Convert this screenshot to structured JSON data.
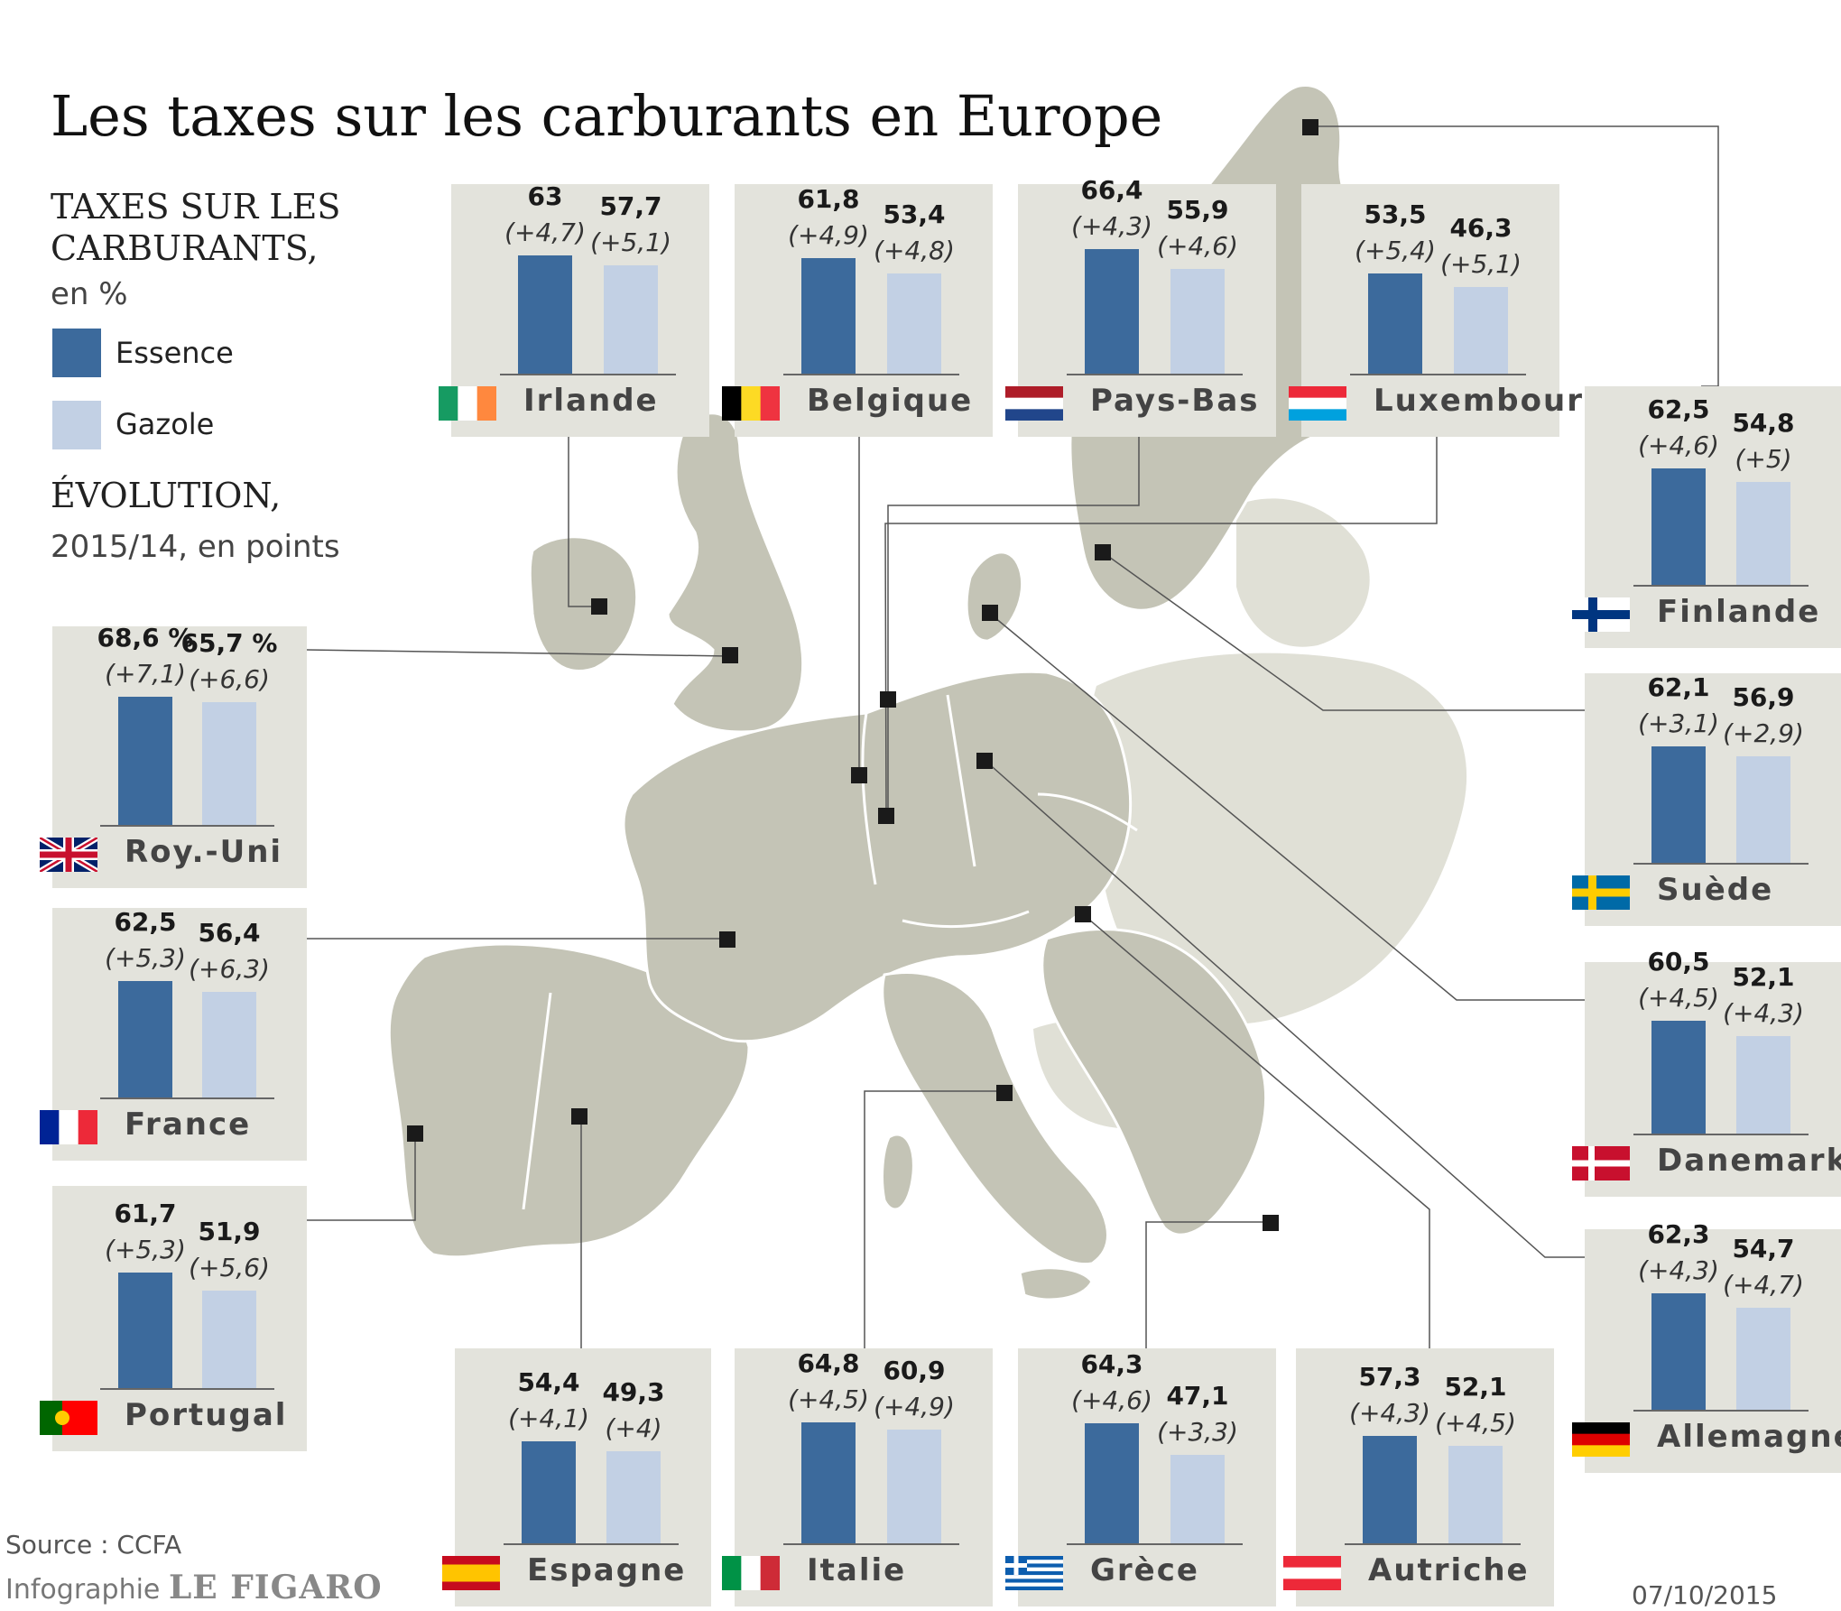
{
  "title": "Les taxes sur les carburants en Europe",
  "legend": {
    "heading_line1": "TAXES SUR LES",
    "heading_line2": "CARBURANTS,",
    "unit": "en %",
    "essence_label": "Essence",
    "gazole_label": "Gazole",
    "evo_heading": "ÉVOLUTION,",
    "evo_unit": "2015/14, en points"
  },
  "colors": {
    "essence": "#3c6a9c",
    "gazole": "#c2d0e4",
    "panel": "#e3e3dc",
    "land": "#c4c4b6",
    "land_light": "#e0e0d6"
  },
  "footer": {
    "source": "Source : CCFA",
    "credit_prefix": "Infographie",
    "credit_brand": "LE FIGARO",
    "date": "07/10/2015"
  },
  "chart_data": {
    "type": "bar",
    "title": "Les taxes sur les carburants en Europe",
    "ylabel": "en %",
    "series_names": [
      "Essence",
      "Gazole"
    ],
    "countries": [
      {
        "name": "Irlande",
        "flag": "ie",
        "essence": 63,
        "essence_label": "63",
        "essence_evo": "(+4,7)",
        "gazole": 57.7,
        "gazole_label": "57,7",
        "gazole_evo": "(+5,1)"
      },
      {
        "name": "Belgique",
        "flag": "be",
        "essence": 61.8,
        "essence_label": "61,8",
        "essence_evo": "(+4,9)",
        "gazole": 53.4,
        "gazole_label": "53,4",
        "gazole_evo": "(+4,8)"
      },
      {
        "name": "Pays-Bas",
        "flag": "nl",
        "essence": 66.4,
        "essence_label": "66,4",
        "essence_evo": "(+4,3)",
        "gazole": 55.9,
        "gazole_label": "55,9",
        "gazole_evo": "(+4,6)"
      },
      {
        "name": "Luxembourg",
        "flag": "lu",
        "essence": 53.5,
        "essence_label": "53,5",
        "essence_evo": "(+5,4)",
        "gazole": 46.3,
        "gazole_label": "46,3",
        "gazole_evo": "(+5,1)"
      },
      {
        "name": "Finlande",
        "flag": "fi",
        "essence": 62.5,
        "essence_label": "62,5",
        "essence_evo": "(+4,6)",
        "gazole": 54.8,
        "gazole_label": "54,8",
        "gazole_evo": "(+5)"
      },
      {
        "name": "Roy.-Uni",
        "flag": "uk",
        "essence": 68.6,
        "essence_label": "68,6 %",
        "essence_evo": "(+7,1)",
        "gazole": 65.7,
        "gazole_label": "65,7 %",
        "gazole_evo": "(+6,6)"
      },
      {
        "name": "Suède",
        "flag": "se",
        "essence": 62.1,
        "essence_label": "62,1",
        "essence_evo": "(+3,1)",
        "gazole": 56.9,
        "gazole_label": "56,9",
        "gazole_evo": "(+2,9)"
      },
      {
        "name": "France",
        "flag": "fr",
        "essence": 62.5,
        "essence_label": "62,5",
        "essence_evo": "(+5,3)",
        "gazole": 56.4,
        "gazole_label": "56,4",
        "gazole_evo": "(+6,3)"
      },
      {
        "name": "Danemark",
        "flag": "dk",
        "essence": 60.5,
        "essence_label": "60,5",
        "essence_evo": "(+4,5)",
        "gazole": 52.1,
        "gazole_label": "52,1",
        "gazole_evo": "(+4,3)"
      },
      {
        "name": "Portugal",
        "flag": "pt",
        "essence": 61.7,
        "essence_label": "61,7",
        "essence_evo": "(+5,3)",
        "gazole": 51.9,
        "gazole_label": "51,9",
        "gazole_evo": "(+5,6)"
      },
      {
        "name": "Allemagne",
        "flag": "de",
        "essence": 62.3,
        "essence_label": "62,3",
        "essence_evo": "(+4,3)",
        "gazole": 54.7,
        "gazole_label": "54,7",
        "gazole_evo": "(+4,7)"
      },
      {
        "name": "Espagne",
        "flag": "es",
        "essence": 54.4,
        "essence_label": "54,4",
        "essence_evo": "(+4,1)",
        "gazole": 49.3,
        "gazole_label": "49,3",
        "gazole_evo": "(+4)"
      },
      {
        "name": "Italie",
        "flag": "it",
        "essence": 64.8,
        "essence_label": "64,8",
        "essence_evo": "(+4,5)",
        "gazole": 60.9,
        "gazole_label": "60,9",
        "gazole_evo": "(+4,9)"
      },
      {
        "name": "Grèce",
        "flag": "gr",
        "essence": 64.3,
        "essence_label": "64,3",
        "essence_evo": "(+4,6)",
        "gazole": 47.1,
        "gazole_label": "47,1",
        "gazole_evo": "(+3,3)"
      },
      {
        "name": "Autriche",
        "flag": "at",
        "essence": 57.3,
        "essence_label": "57,3",
        "essence_evo": "(+4,3)",
        "gazole": 52.1,
        "gazole_label": "52,1",
        "gazole_evo": "(+4,5)"
      }
    ]
  }
}
